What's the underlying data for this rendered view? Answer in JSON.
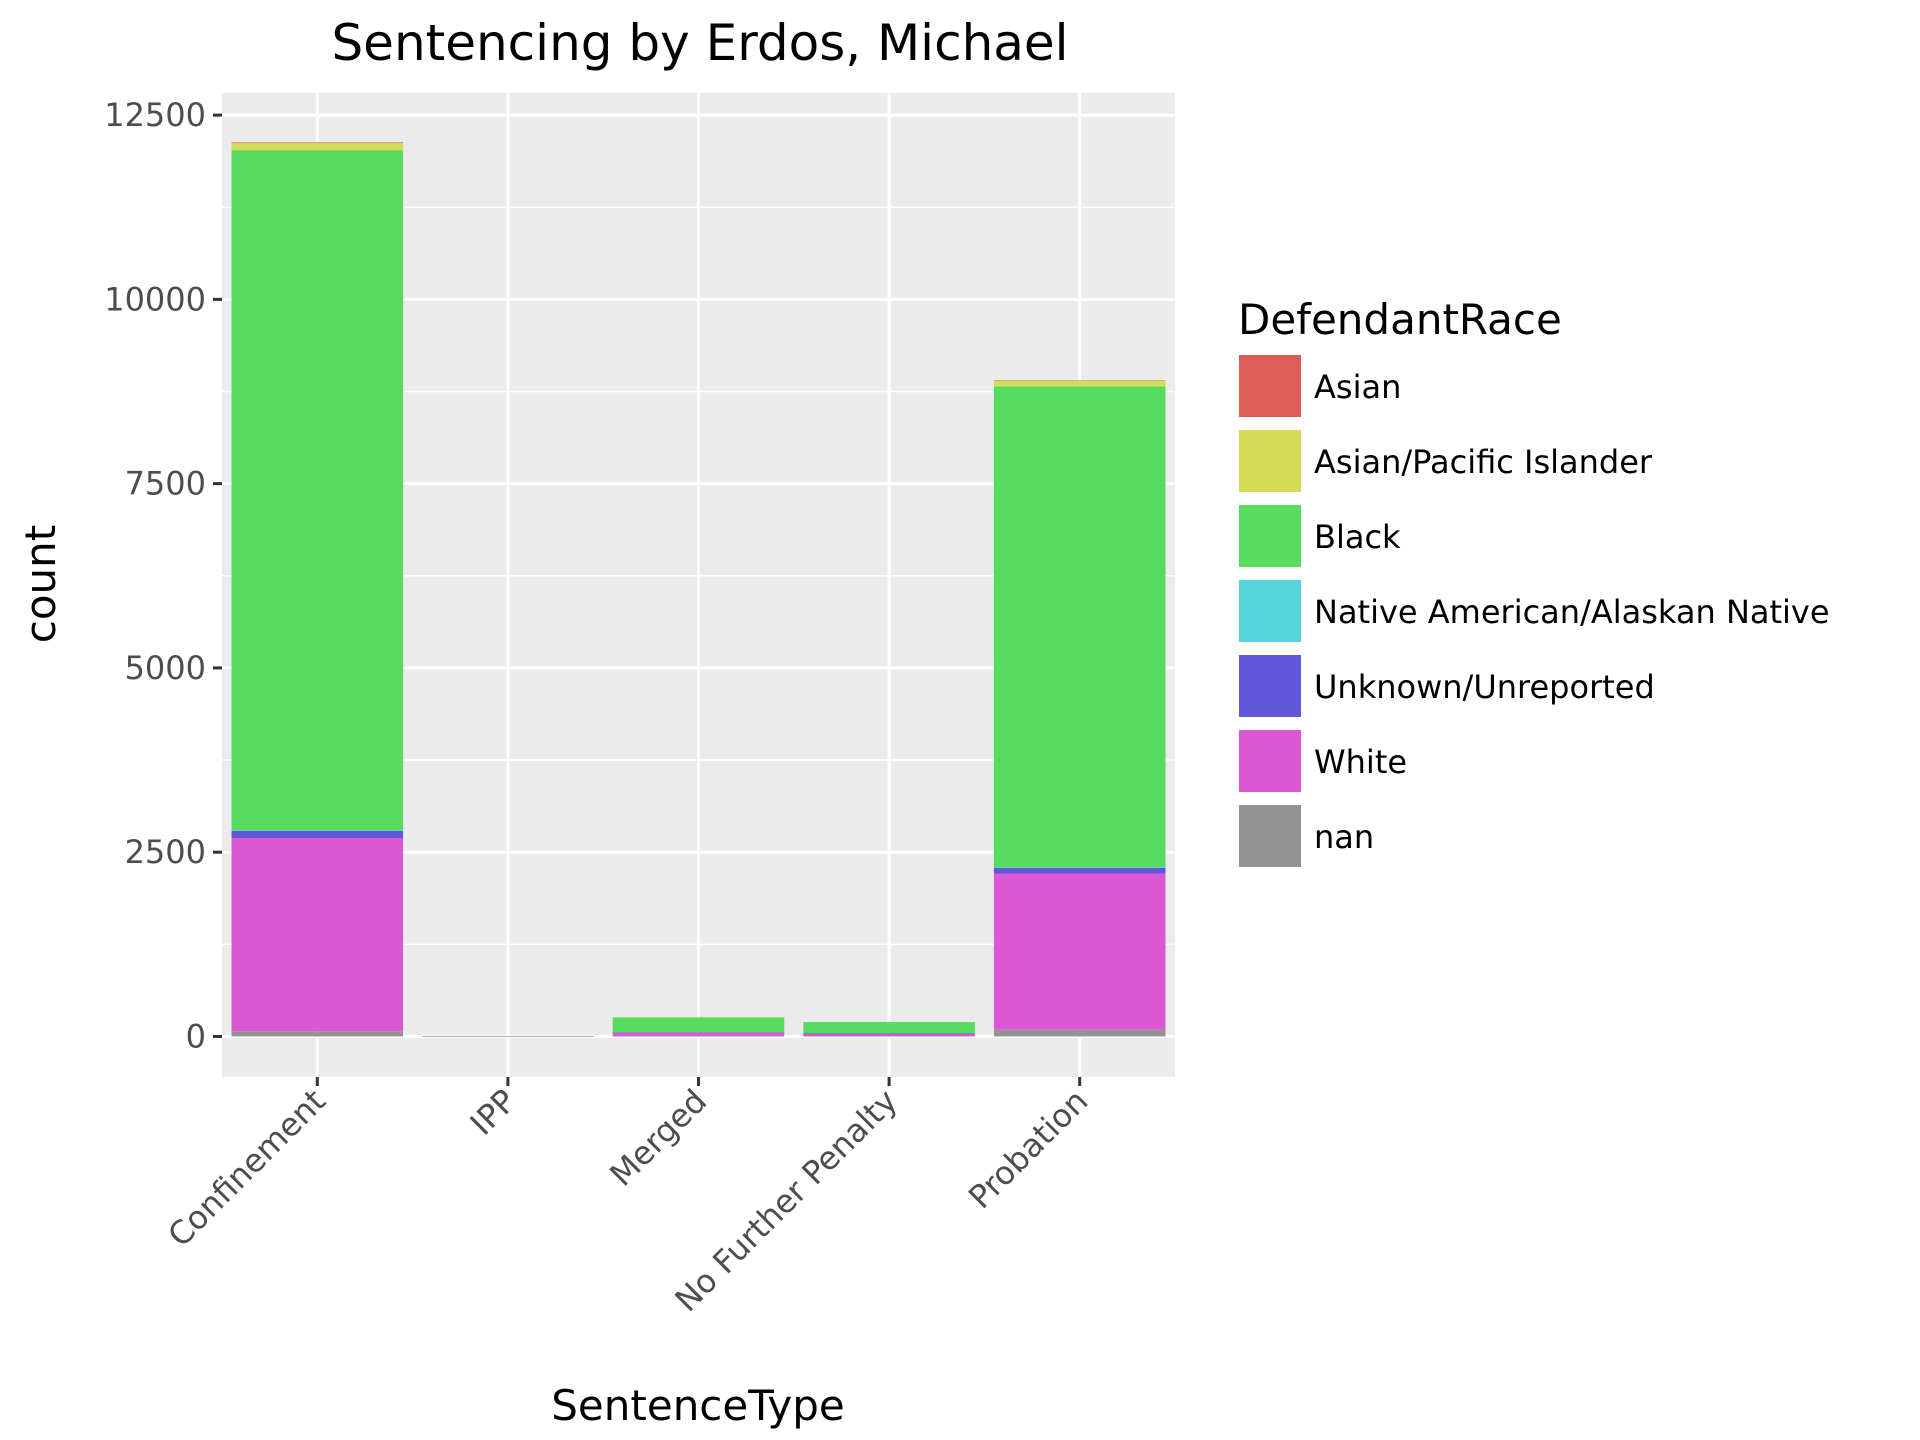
{
  "chart_data": {
    "type": "bar",
    "stacked": true,
    "title": "Sentencing by Erdos, Michael",
    "xlabel": "SentenceType",
    "ylabel": "count",
    "ylim": [
      -550,
      12800
    ],
    "yticks": [
      0,
      2500,
      5000,
      7500,
      10000,
      12500
    ],
    "ytick_labels": [
      "0",
      "2500",
      "5000",
      "7500",
      "10000",
      "12500"
    ],
    "categories": [
      "Confinement",
      "IPP",
      "Merged",
      "No Further Penalty",
      "Probation"
    ],
    "legend_title": "DefendantRace",
    "legend_position": "right",
    "grid": true,
    "series": [
      {
        "name": "nan",
        "color": "#939393",
        "values": [
          70,
          0,
          5,
          5,
          90
        ]
      },
      {
        "name": "White",
        "color": "#db57d4",
        "values": [
          2620,
          2,
          45,
          30,
          2120
        ]
      },
      {
        "name": "Unknown/Unreported",
        "color": "#6057db",
        "values": [
          100,
          0,
          5,
          5,
          80
        ]
      },
      {
        "name": "Native American/Alaskan Native",
        "color": "#57d3db",
        "values": [
          10,
          0,
          0,
          0,
          5
        ]
      },
      {
        "name": "Black",
        "color": "#57db5e",
        "values": [
          9220,
          3,
          205,
          155,
          6525
        ]
      },
      {
        "name": "Asian/Pacific Islander",
        "color": "#d3db57",
        "values": [
          100,
          0,
          0,
          0,
          75
        ]
      },
      {
        "name": "Asian",
        "color": "#db5f57",
        "values": [
          10,
          0,
          0,
          0,
          5
        ]
      }
    ],
    "legend_order": [
      "Asian",
      "Asian/Pacific Islander",
      "Black",
      "Native American/Alaskan Native",
      "Unknown/Unreported",
      "White",
      "nan"
    ]
  }
}
